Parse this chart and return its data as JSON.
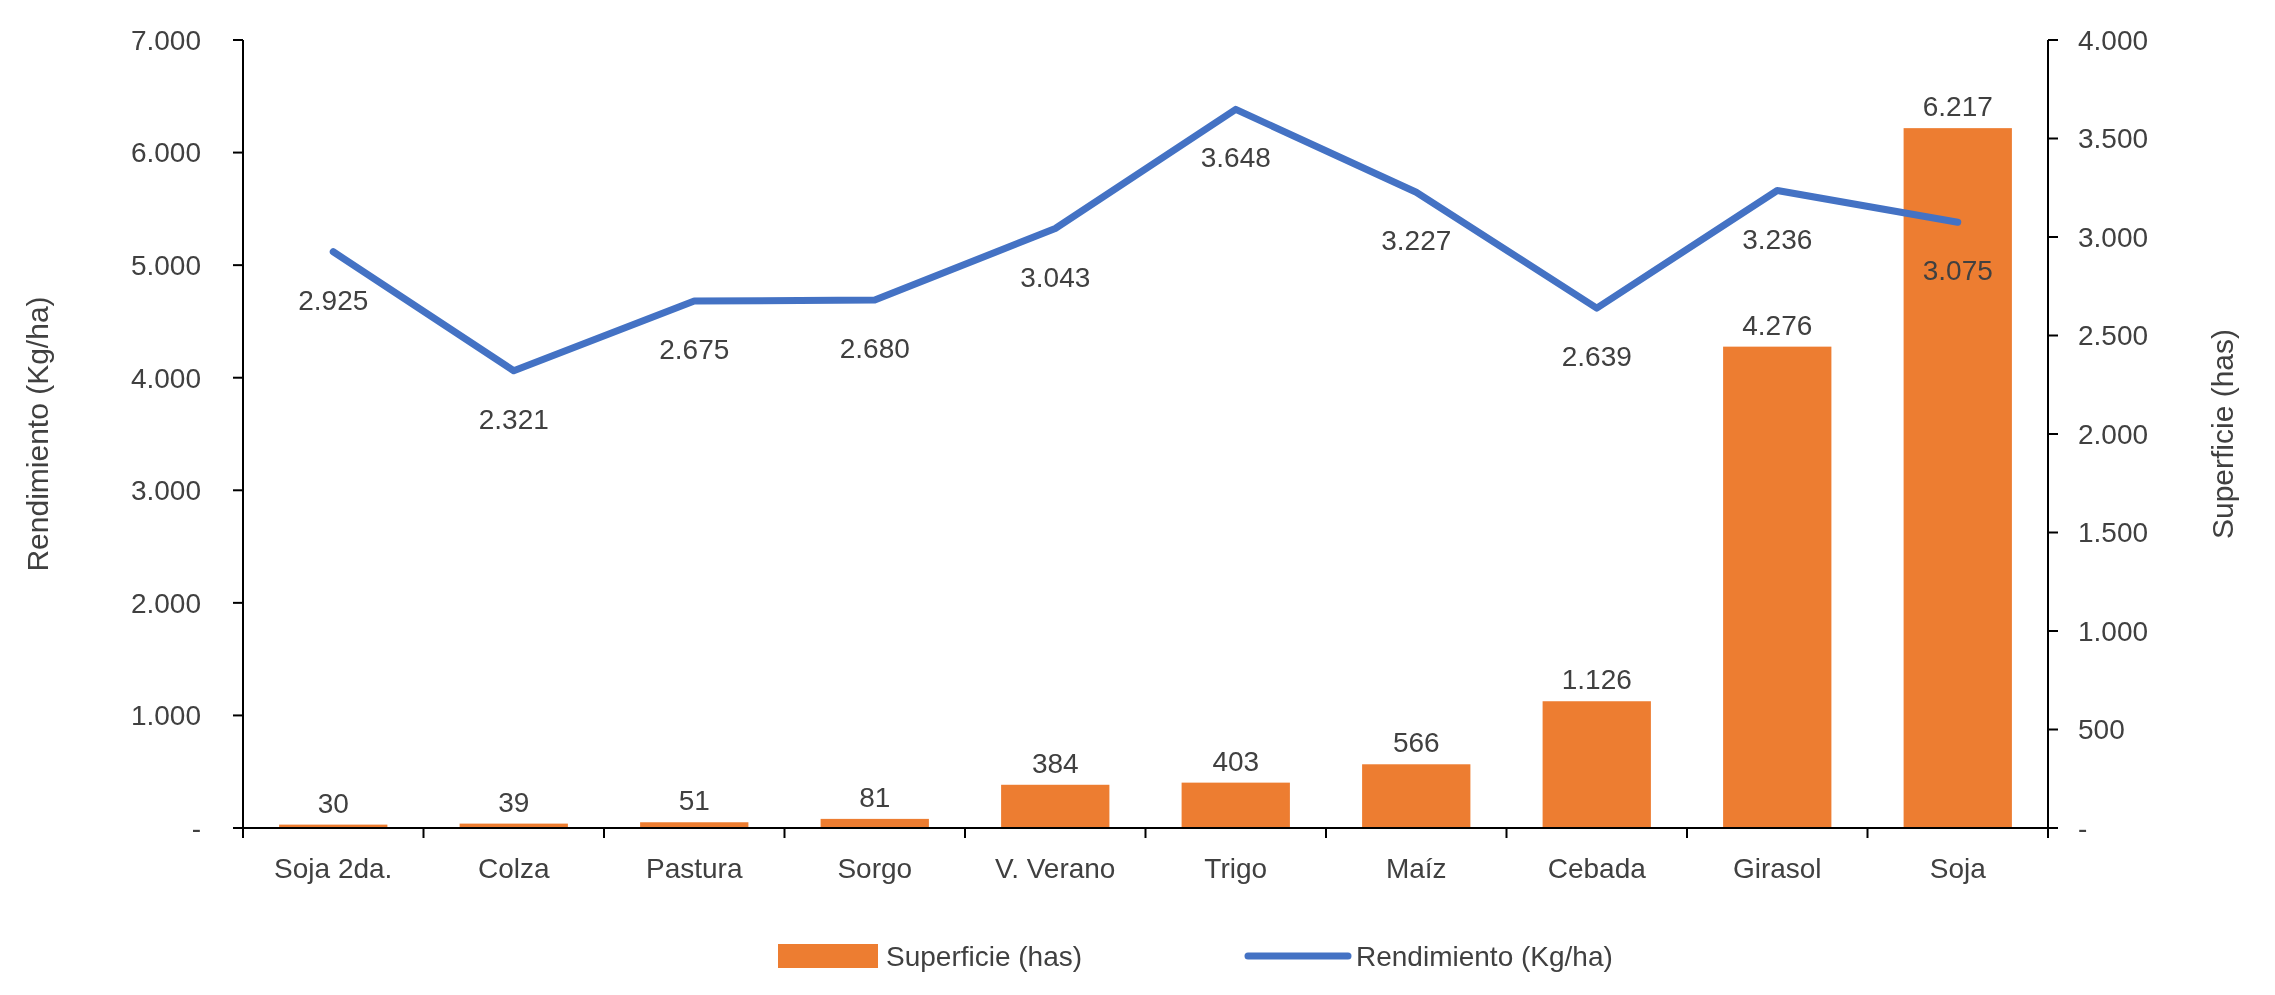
{
  "chart_data": {
    "type": "bar",
    "categories": [
      "Soja 2da.",
      "Colza",
      "Pastura",
      "Sorgo",
      "V. Verano",
      "Trigo",
      "Maíz",
      "Cebada",
      "Girasol",
      "Soja"
    ],
    "ylabel": "Rendimiento (Kg/ha)",
    "y2label": "Superficie (has)",
    "ylim": [
      0,
      7000
    ],
    "yticks": [
      {
        "value": 0,
        "label": "-"
      },
      {
        "value": 1000,
        "label": "1.000"
      },
      {
        "value": 2000,
        "label": "2.000"
      },
      {
        "value": 3000,
        "label": "3.000"
      },
      {
        "value": 4000,
        "label": "4.000"
      },
      {
        "value": 5000,
        "label": "5.000"
      },
      {
        "value": 6000,
        "label": "6.000"
      },
      {
        "value": 7000,
        "label": "7.000"
      }
    ],
    "y2lim": [
      0,
      4000
    ],
    "y2ticks": [
      {
        "value": 0,
        "label": "-"
      },
      {
        "value": 500,
        "label": "500"
      },
      {
        "value": 1000,
        "label": "1.000"
      },
      {
        "value": 1500,
        "label": "1.500"
      },
      {
        "value": 2000,
        "label": "2.000"
      },
      {
        "value": 2500,
        "label": "2.500"
      },
      {
        "value": 3000,
        "label": "3.000"
      },
      {
        "value": 3500,
        "label": "3.500"
      },
      {
        "value": 4000,
        "label": "4.000"
      }
    ],
    "series": [
      {
        "name": "Superficie (has)",
        "color": "#ed7d31",
        "values": [
          30,
          39,
          51,
          81,
          384,
          403,
          566,
          1126,
          4276,
          6217
        ],
        "value_labels": [
          "30",
          "39",
          "51",
          "81",
          "384",
          "403",
          "566",
          "1.126",
          "4.276",
          "6.217"
        ]
      },
      {
        "name": "Rendimiento (Kg/ha)",
        "type": "line",
        "axis": "y2",
        "color": "#4472c4",
        "values": [
          2925,
          2321,
          2675,
          2680,
          3043,
          3648,
          3227,
          2639,
          3236,
          3075
        ],
        "value_labels": [
          "2.925",
          "2.321",
          "2.675",
          "2.680",
          "3.043",
          "3.648",
          "3.227",
          "2.639",
          "3.236",
          "3.075"
        ]
      }
    ],
    "legend": "bottom",
    "grid": false,
    "marker": "none"
  }
}
